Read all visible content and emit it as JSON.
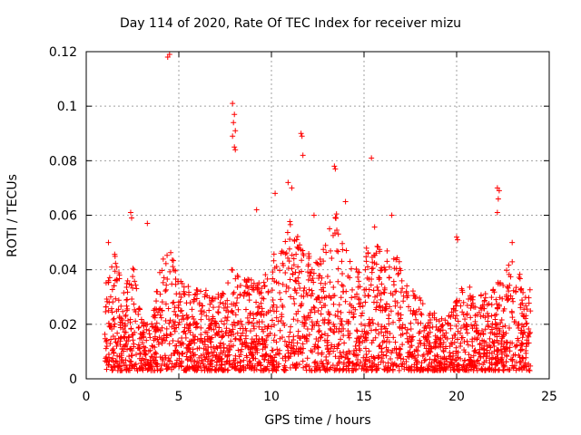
{
  "chart_data": {
    "type": "scatter",
    "title": "Day 114 of 2020, Rate Of TEC Index for receiver mizu",
    "xlabel": "GPS time / hours",
    "ylabel": "ROTI / TECUs",
    "xlim": [
      0,
      25
    ],
    "ylim": [
      0,
      0.12
    ],
    "xticks": [
      "0",
      "5",
      "10",
      "15",
      "20",
      "25"
    ],
    "yticks": [
      "0",
      "0.02",
      "0.04",
      "0.06",
      "0.08",
      "0.1",
      "0.12"
    ],
    "grid": true,
    "marker": "+",
    "color": "#ff0000",
    "baseline": {
      "x": [
        1.0,
        1.5,
        2.0,
        2.5,
        3.0,
        3.5,
        4.0,
        4.5,
        5.0,
        5.5,
        6.0,
        6.5,
        7.0,
        7.5,
        8.0,
        8.5,
        9.0,
        9.5,
        10.0,
        10.5,
        11.0,
        11.5,
        12.0,
        12.5,
        13.0,
        13.5,
        14.0,
        14.5,
        15.0,
        15.5,
        16.0,
        16.5,
        17.0,
        17.5,
        18.0,
        18.5,
        19.0,
        19.5,
        20.0,
        20.5,
        21.0,
        21.5,
        22.0,
        22.5,
        23.0,
        23.5,
        24.0
      ],
      "upper": [
        0.03,
        0.045,
        0.028,
        0.04,
        0.02,
        0.018,
        0.038,
        0.048,
        0.033,
        0.032,
        0.03,
        0.03,
        0.028,
        0.03,
        0.04,
        0.035,
        0.033,
        0.032,
        0.042,
        0.045,
        0.055,
        0.05,
        0.045,
        0.04,
        0.05,
        0.058,
        0.045,
        0.04,
        0.042,
        0.055,
        0.045,
        0.045,
        0.04,
        0.03,
        0.028,
        0.022,
        0.022,
        0.02,
        0.026,
        0.035,
        0.025,
        0.032,
        0.03,
        0.035,
        0.042,
        0.035,
        0.03
      ]
    },
    "peaks": [
      {
        "x": 4.4,
        "y": 0.118
      },
      {
        "x": 4.5,
        "y": 0.119
      },
      {
        "x": 7.9,
        "y": 0.101
      },
      {
        "x": 8.0,
        "y": 0.097
      },
      {
        "x": 7.95,
        "y": 0.094
      },
      {
        "x": 8.05,
        "y": 0.091
      },
      {
        "x": 7.9,
        "y": 0.089
      },
      {
        "x": 8.0,
        "y": 0.085
      },
      {
        "x": 8.05,
        "y": 0.084
      },
      {
        "x": 11.6,
        "y": 0.09
      },
      {
        "x": 11.65,
        "y": 0.089
      },
      {
        "x": 11.7,
        "y": 0.082
      },
      {
        "x": 13.4,
        "y": 0.078
      },
      {
        "x": 13.45,
        "y": 0.077
      },
      {
        "x": 15.4,
        "y": 0.081
      },
      {
        "x": 10.9,
        "y": 0.072
      },
      {
        "x": 11.1,
        "y": 0.07
      },
      {
        "x": 10.2,
        "y": 0.068
      },
      {
        "x": 2.4,
        "y": 0.061
      },
      {
        "x": 2.45,
        "y": 0.059
      },
      {
        "x": 1.2,
        "y": 0.05
      },
      {
        "x": 22.2,
        "y": 0.07
      },
      {
        "x": 22.3,
        "y": 0.069
      },
      {
        "x": 22.25,
        "y": 0.066
      },
      {
        "x": 22.2,
        "y": 0.061
      },
      {
        "x": 20.0,
        "y": 0.052
      },
      {
        "x": 20.05,
        "y": 0.051
      },
      {
        "x": 16.5,
        "y": 0.06
      },
      {
        "x": 14.0,
        "y": 0.065
      },
      {
        "x": 9.2,
        "y": 0.062
      },
      {
        "x": 12.3,
        "y": 0.06
      },
      {
        "x": 23.0,
        "y": 0.05
      },
      {
        "x": 3.3,
        "y": 0.057
      }
    ]
  }
}
